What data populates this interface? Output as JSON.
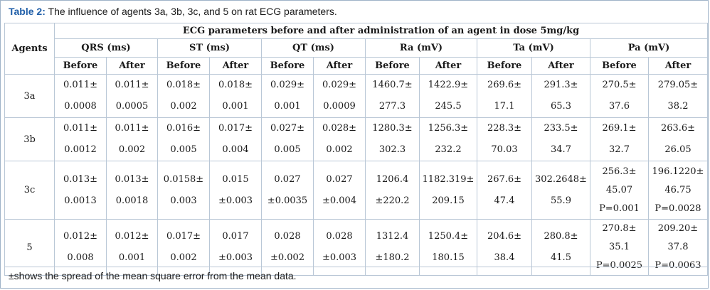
{
  "caption": {
    "label": "Table 2:",
    "text": " The influence of agents 3a, 3b, 3c, and 5 on rat ECG parameters."
  },
  "header": {
    "agents": "Agents",
    "group": "ECG parameters before and after administration of an agent in dose 5mg/kg",
    "params": [
      "QRS (ms)",
      "ST (ms)",
      "QT (ms)",
      "Ra (mV)",
      "Ta (mV)",
      "Pa (mV)"
    ],
    "before": "Before",
    "after": "After"
  },
  "rows": [
    {
      "agent": "3a",
      "cells": [
        [
          "0.011±",
          "0.0008"
        ],
        [
          "0.011±",
          "0.0005"
        ],
        [
          "0.018±",
          "0.002"
        ],
        [
          "0.018±",
          "0.001"
        ],
        [
          "0.029±",
          "0.001"
        ],
        [
          "0.029±",
          "0.0009"
        ],
        [
          "1460.7±",
          "277.3"
        ],
        [
          "1422.9±",
          "245.5"
        ],
        [
          "269.6±",
          "17.1"
        ],
        [
          "291.3±",
          "65.3"
        ],
        [
          "270.5±",
          "37.6"
        ],
        [
          "279.05±",
          "38.2"
        ]
      ]
    },
    {
      "agent": "3b",
      "cells": [
        [
          "0.011±",
          "0.0012"
        ],
        [
          "0.011±",
          "0.002"
        ],
        [
          "0.016±",
          "0.005"
        ],
        [
          "0.017±",
          "0.004"
        ],
        [
          "0.027±",
          "0.005"
        ],
        [
          "0.028±",
          "0.002"
        ],
        [
          "1280.3±",
          "302.3"
        ],
        [
          "1256.3±",
          "232.2"
        ],
        [
          "228.3±",
          "70.03"
        ],
        [
          "233.5±",
          "34.7"
        ],
        [
          "269.1±",
          "32.7"
        ],
        [
          "263.6±",
          "26.05"
        ]
      ]
    },
    {
      "agent": "3c",
      "cells": [
        [
          "0.013±",
          "0.0013"
        ],
        [
          "0.013±",
          "0.0018"
        ],
        [
          "0.0158±",
          "0.003"
        ],
        [
          "0.015",
          "±0.003"
        ],
        [
          "0.027",
          "±0.0035"
        ],
        [
          "0.027",
          "±0.004"
        ],
        [
          "1206.4",
          "±220.2"
        ],
        [
          "1182.319±",
          "209.15"
        ],
        [
          "267.6±",
          "47.4"
        ],
        [
          "302.2648±",
          "55.9"
        ],
        [
          "256.3±",
          "45.07",
          "P=0.001"
        ],
        [
          "196.1220±",
          "46.75",
          "P=0.0028"
        ]
      ]
    },
    {
      "agent": "5",
      "cells": [
        [
          "0.012±",
          "0.008"
        ],
        [
          "0.012±",
          "0.001"
        ],
        [
          "0.017±",
          "0.002"
        ],
        [
          "0.017",
          "±0.003"
        ],
        [
          "0.028",
          "±0.002"
        ],
        [
          "0.028",
          "±0.003"
        ],
        [
          "1312.4",
          "±180.2"
        ],
        [
          "1250.4±",
          "180.15"
        ],
        [
          "204.6±",
          "38.4"
        ],
        [
          "280.8±",
          "41.5"
        ],
        [
          "270.8±",
          "35.1",
          "P=0.0025"
        ],
        [
          "209.20±",
          "37.8",
          "P=0.0063"
        ]
      ]
    }
  ],
  "footnote": "±shows the spread of the mean square error from the mean data."
}
